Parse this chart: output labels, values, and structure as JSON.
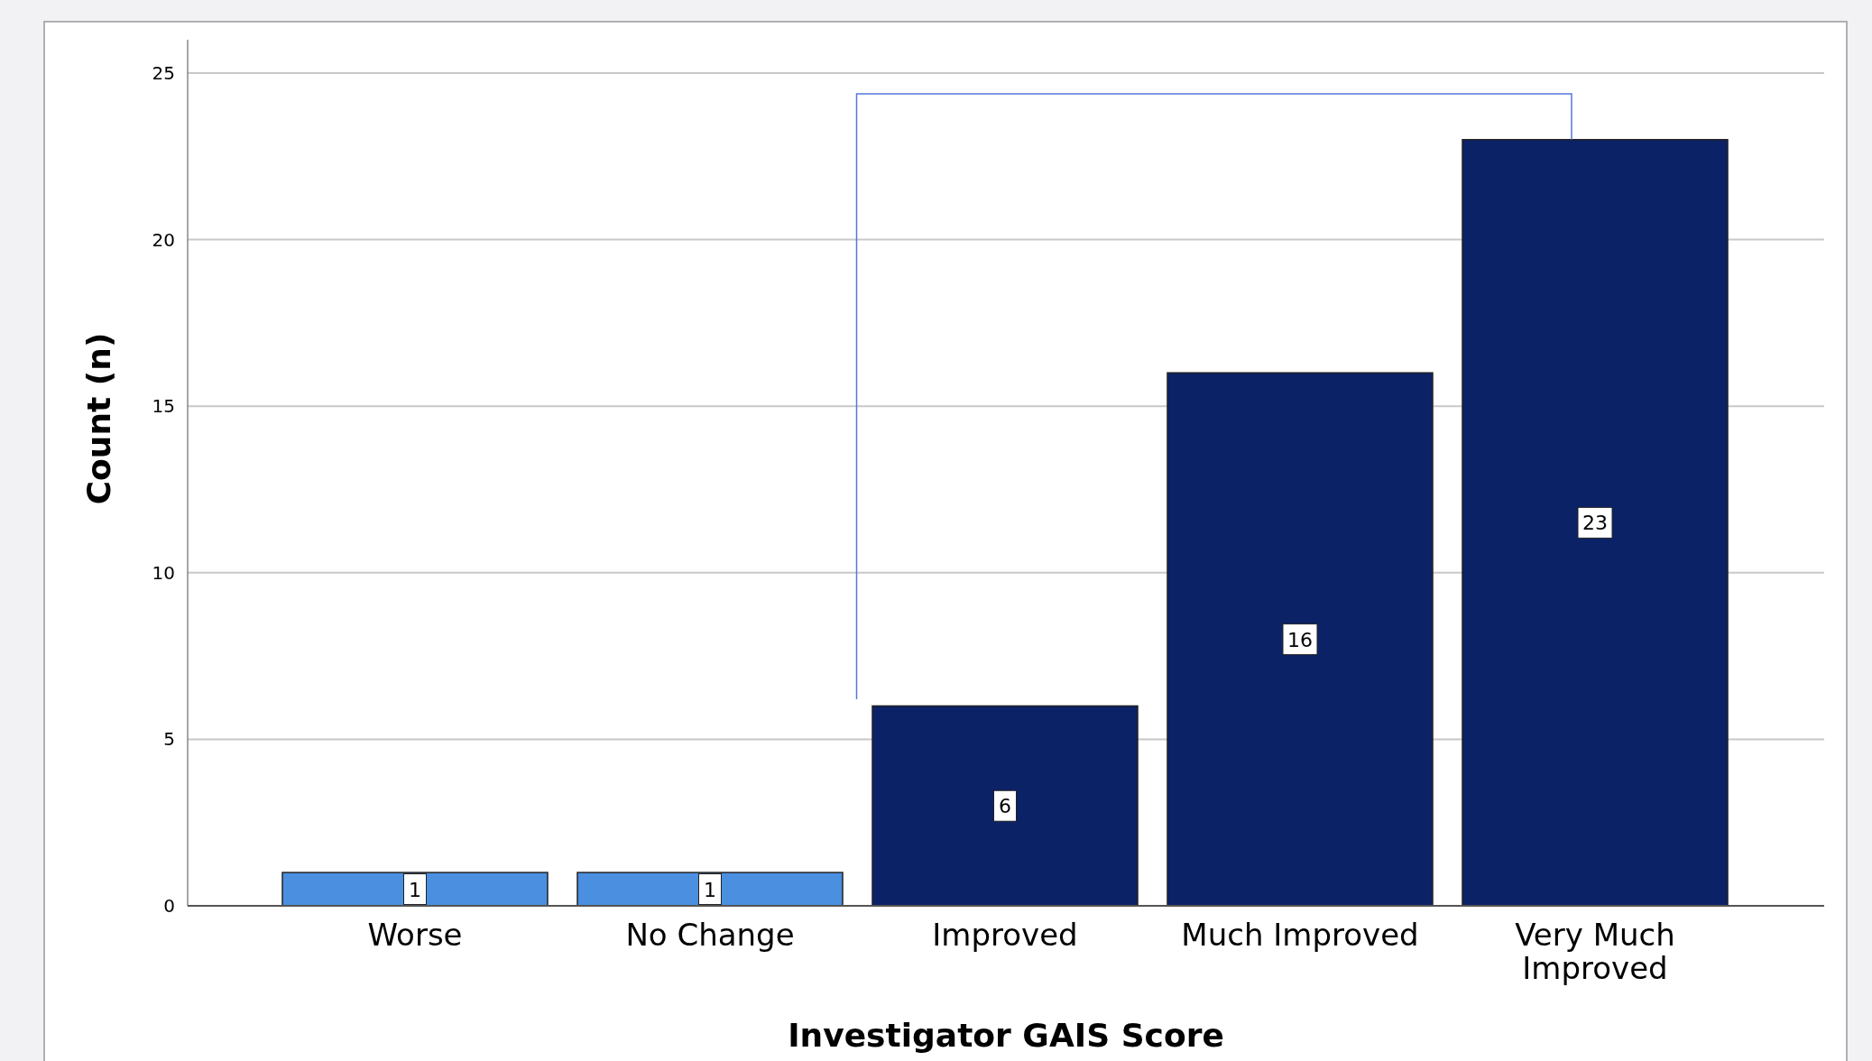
{
  "chart_data": {
    "type": "bar",
    "xlabel": "Investigator GAIS Score",
    "ylabel": "Count (n)",
    "categories": [
      "Worse",
      "No Change",
      "Improved",
      "Much Improved",
      "Very Much Improved"
    ],
    "values": [
      1,
      1,
      6,
      16,
      23
    ],
    "colors": [
      "#4a8fe0",
      "#4a8fe0",
      "#0b2266",
      "#0b2266",
      "#0b2266"
    ],
    "ylim": [
      0,
      26
    ],
    "yticks": [
      0,
      5,
      10,
      15,
      20,
      25
    ],
    "grid": "y",
    "data_labels": true
  }
}
